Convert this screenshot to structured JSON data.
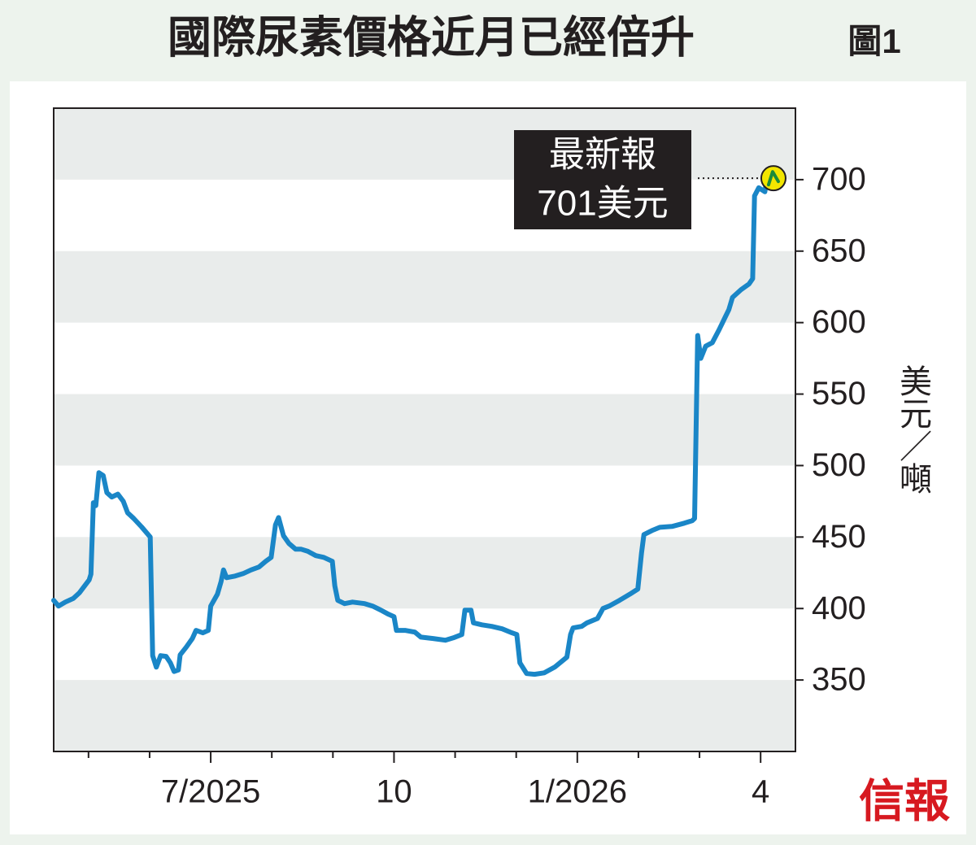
{
  "chart_data": {
    "type": "line",
    "title": "國際尿素價格近月已經倍升",
    "figure_label": "圖1",
    "ylabel": "美元／噸",
    "annotation": [
      "最新報",
      "701美元"
    ],
    "source": "信報",
    "xlim": [
      4.43,
      16.57
    ],
    "xticks": [
      {
        "value": 7,
        "label": "7/2025"
      },
      10,
      {
        "value": 13,
        "label": "1/2026"
      },
      {
        "value": 16,
        "label": "4"
      }
    ],
    "xminorticks": [
      5,
      6,
      8,
      9,
      11,
      12,
      14,
      15
    ],
    "ylim": [
      300,
      750
    ],
    "yticks": [
      350,
      400,
      450,
      500,
      550,
      600,
      650,
      700
    ],
    "grid": "bands",
    "series": [
      {
        "name": "尿素價格",
        "color": "#1a86c7",
        "x": [
          4.43,
          4.51,
          4.62,
          4.75,
          4.85,
          5.01,
          5.04,
          5.08,
          5.12,
          5.17,
          5.24,
          5.3,
          5.38,
          5.48,
          5.57,
          5.64,
          5.74,
          5.87,
          6.01,
          6.05,
          6.11,
          6.18,
          6.27,
          6.34,
          6.4,
          6.47,
          6.5,
          6.6,
          6.7,
          6.76,
          6.87,
          6.96,
          7.0,
          7.11,
          7.17,
          7.21,
          7.26,
          7.4,
          7.53,
          7.66,
          7.79,
          7.9,
          7.99,
          8.06,
          8.11,
          8.19,
          8.28,
          8.39,
          8.48,
          8.59,
          8.72,
          8.85,
          8.99,
          9.03,
          9.08,
          9.19,
          9.32,
          9.52,
          9.65,
          9.78,
          9.91,
          10.0,
          10.04,
          10.18,
          10.34,
          10.44,
          10.64,
          10.84,
          10.97,
          11.11,
          11.16,
          11.26,
          11.3,
          11.44,
          11.6,
          11.77,
          11.93,
          12.01,
          12.06,
          12.17,
          12.3,
          12.46,
          12.63,
          12.83,
          12.89,
          12.93,
          13.07,
          13.16,
          13.33,
          13.42,
          13.52,
          13.69,
          13.86,
          13.99,
          14.05,
          14.09,
          14.22,
          14.35,
          14.55,
          14.75,
          14.88,
          14.92,
          14.97,
          15.02,
          15.1,
          15.21,
          15.32,
          15.41,
          15.48,
          15.54,
          15.68,
          15.81,
          15.87,
          15.9,
          15.97,
          16.07,
          16.09,
          16.16,
          16.21
        ],
        "values": [
          405.7,
          401.7,
          404.5,
          407,
          411,
          420,
          424,
          474,
          472,
          495,
          493,
          481,
          478,
          480,
          475,
          467,
          463,
          457,
          450,
          367,
          359,
          367,
          366.5,
          362,
          356,
          357,
          367.6,
          373,
          379,
          384.7,
          383,
          384.7,
          401.7,
          410,
          418.8,
          427,
          421.6,
          422.7,
          424.4,
          427,
          429,
          433,
          435.8,
          458.5,
          463.6,
          451,
          445.5,
          441.5,
          441.5,
          440,
          437,
          435.8,
          433,
          416,
          405.7,
          403.4,
          404.5,
          403.4,
          401.7,
          399,
          396,
          394.3,
          384.7,
          384.7,
          383.5,
          380,
          379,
          377.8,
          379.5,
          381.8,
          398.9,
          398.9,
          390,
          388.6,
          387.5,
          385.8,
          383,
          381.8,
          362,
          354.5,
          354,
          355,
          359,
          366,
          381.8,
          386.4,
          387.5,
          390,
          393,
          400,
          401.7,
          405.7,
          410,
          413.6,
          438.6,
          451.7,
          454.5,
          456.8,
          457.4,
          459.7,
          461.4,
          463,
          591,
          575,
          583.5,
          586,
          595,
          603,
          609,
          617.6,
          623,
          627,
          630.7,
          688.6,
          694.3,
          691.5,
          697,
          704.5,
          701
        ]
      }
    ]
  }
}
